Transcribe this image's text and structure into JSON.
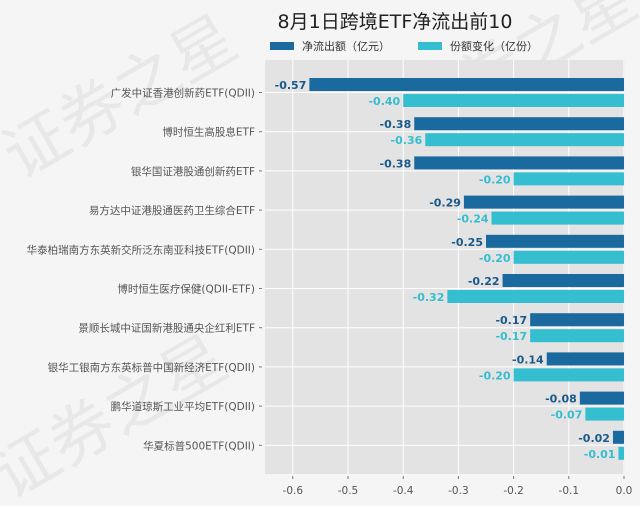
{
  "chart_data": {
    "type": "bar",
    "orientation": "horizontal",
    "title": "8月1日跨境ETF净流出前10",
    "categories": [
      "广发中证香港创新药ETF(QDII)",
      "博时恒生高股息ETF",
      "银华国证港股通创新药ETF",
      "易方达中证港股通医药卫生综合ETF",
      "华泰柏瑞南方东英新交所泛东南亚科技ETF(QDII)",
      "博时恒生医疗保健(QDII-ETF)",
      "景顺长城中证国新港股通央企红利ETF",
      "银华工银南方东英标普中国新经济ETF(QDII)",
      "鹏华道琼斯工业平均ETF(QDII)",
      "华夏标普500ETF(QDII)"
    ],
    "series": [
      {
        "name": "净流出额（亿元）",
        "color": "#1a6aa0",
        "values": [
          -0.57,
          -0.38,
          -0.38,
          -0.29,
          -0.25,
          -0.22,
          -0.17,
          -0.14,
          -0.08,
          -0.02
        ],
        "labels": [
          "-0.57",
          "-0.38",
          "-0.38",
          "-0.29",
          "-0.25",
          "-0.22",
          "-0.17",
          "-0.14",
          "-0.08",
          "-0.02"
        ]
      },
      {
        "name": "份额变化（亿份）",
        "color": "#35bdd0",
        "values": [
          -0.4,
          -0.36,
          -0.2,
          -0.24,
          -0.2,
          -0.32,
          -0.17,
          -0.2,
          -0.07,
          -0.01
        ],
        "labels": [
          "-0.40",
          "-0.36",
          "-0.20",
          "-0.24",
          "-0.20",
          "-0.32",
          "-0.17",
          "-0.20",
          "-0.07",
          "-0.01"
        ]
      }
    ],
    "xticks": [
      -0.6,
      -0.5,
      -0.4,
      -0.3,
      -0.2,
      -0.1,
      0.0
    ],
    "xtick_labels": [
      "-0.6",
      "-0.5",
      "-0.4",
      "-0.3",
      "-0.2",
      "-0.1",
      "0.0"
    ],
    "xlim": [
      -0.65,
      0.0
    ],
    "xlabel": "",
    "ylabel": "",
    "grid": true,
    "legend_position": "top",
    "label_colors": {
      "series0": "#1a5a8a",
      "series1": "#35bdd0"
    }
  },
  "watermark": "证券之星"
}
